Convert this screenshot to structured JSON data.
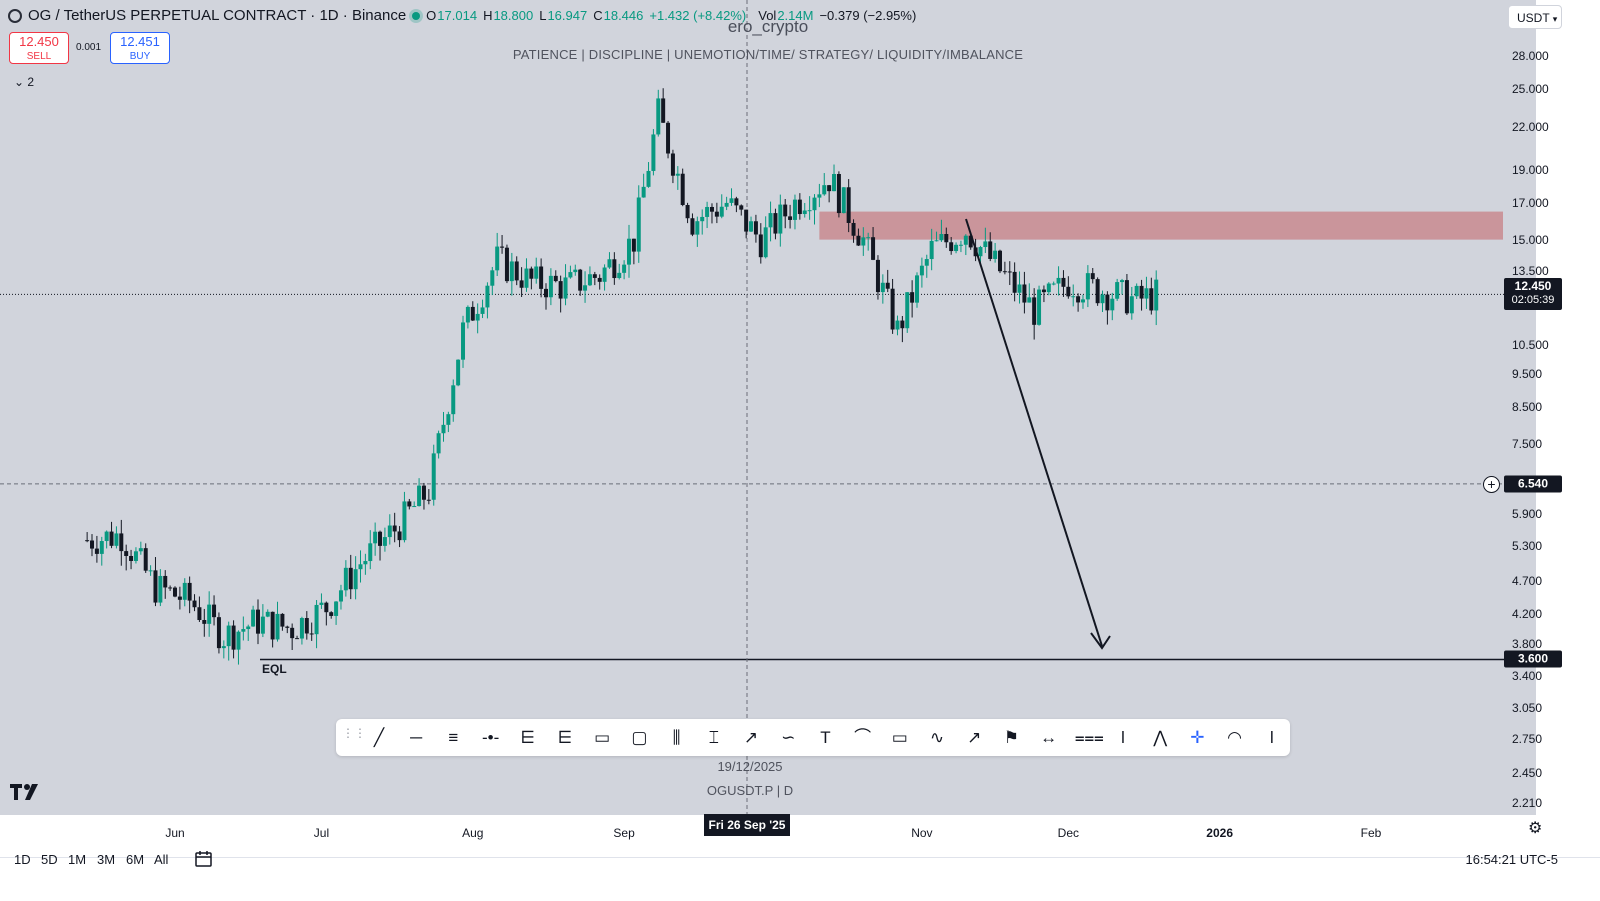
{
  "header": {
    "symbol": "OG / TetherUS PERPETUAL CONTRACT · 1D · Binance",
    "open_label": "O",
    "open": "17.014",
    "high_label": "H",
    "high": "18.800",
    "low_label": "L",
    "low": "16.947",
    "close_label": "C",
    "close": "18.446",
    "change": "+1.432 (+8.42%)",
    "vol_label": "Vol",
    "vol": "2.14M",
    "vol_change": "−0.379 (−2.95%)"
  },
  "trade": {
    "sell_price": "12.450",
    "sell_label": "SELL",
    "spread": "0.001",
    "buy_price": "12.451",
    "buy_label": "BUY"
  },
  "indicator_toggle": "2",
  "watermark": "ero_crypto",
  "tagline": "PATIENCE  |  DISCIPLINE  |  UNEMOTION/TIME/ STRATEGY/ LIQUIDITY/IMBALANCE",
  "currency": "USDT",
  "price_ticks": [
    "28.000",
    "25.000",
    "22.000",
    "19.000",
    "17.000",
    "15.000",
    "13.500",
    "10.500",
    "9.500",
    "8.500",
    "7.500",
    "5.900",
    "5.300",
    "4.700",
    "4.200",
    "3.800",
    "3.400",
    "3.050",
    "2.750",
    "2.450",
    "2.210"
  ],
  "current_price": "12.450",
  "countdown": "02:05:39",
  "alert_price": "6.540",
  "eql_price": "3.600",
  "eql_label": "EQL",
  "time_ticks": [
    "Jun",
    "Jul",
    "Aug",
    "Sep",
    "Nov",
    "Dec",
    "2026",
    "Feb"
  ],
  "crosshair_date": "Fri 26 Sep '25",
  "note_date": "19/12/2025",
  "note_symbol": "OGUSDT.P  |  D",
  "timeframes": [
    "1D",
    "5D",
    "1M",
    "3M",
    "6M",
    "All"
  ],
  "clock": "16:54:21 UTC-5",
  "colors": {
    "up": "#089981",
    "down": "#131722",
    "zone": "#c9898f",
    "background": "#d1d4dc"
  },
  "toolbar_icons": [
    "trend-line-icon",
    "horizontal-ray-icon",
    "parallel-channel-icon",
    "horizontal-line-icon",
    "fib-retracement-icon",
    "fib-extension-icon",
    "callout-icon",
    "rectangle-icon",
    "long-position-icon",
    "price-range-icon",
    "arrow-icon",
    "brush-icon",
    "text-icon",
    "curve-icon",
    "comment-icon",
    "path-icon",
    "arrow-marker-icon",
    "flag-icon",
    "date-range-icon",
    "pitchfork-icon",
    "bars-pattern-icon",
    "projection-icon",
    "crosshair-icon",
    "arc-icon",
    "vertical-line-icon"
  ],
  "chart_data": {
    "type": "candlestick",
    "scale": "log",
    "x": [
      "2025-05-14",
      "2025-05-21",
      "2025-05-28",
      "2025-06-04",
      "2025-06-11",
      "2025-06-18",
      "2025-06-25",
      "2025-07-02",
      "2025-07-09",
      "2025-07-16",
      "2025-07-23",
      "2025-07-30",
      "2025-08-06",
      "2025-08-13",
      "2025-08-20",
      "2025-08-27",
      "2025-09-03",
      "2025-09-08",
      "2025-09-15",
      "2025-09-22",
      "2025-09-29",
      "2025-10-06",
      "2025-10-13",
      "2025-10-20",
      "2025-10-27",
      "2025-11-03",
      "2025-11-10",
      "2025-11-17",
      "2025-11-24",
      "2025-12-01",
      "2025-12-08",
      "2025-12-15",
      "2025-12-19"
    ],
    "close": [
      5.4,
      5.5,
      4.6,
      4.4,
      3.9,
      4.1,
      4.0,
      4.3,
      5.0,
      5.6,
      6.4,
      11.0,
      14.0,
      13.0,
      12.8,
      13.3,
      15.0,
      23.0,
      16.0,
      17.0,
      15.0,
      17.0,
      18.5,
      15.0,
      11.0,
      14.5,
      15.5,
      13.5,
      11.8,
      13.0,
      12.6,
      12.2,
      12.45
    ],
    "ylim": [
      2.2,
      29.0
    ],
    "horizontal_lines": [
      {
        "price": 3.6,
        "label": "EQL"
      },
      {
        "price": 6.54,
        "style": "dashed"
      },
      {
        "price": 12.45,
        "style": "dotted"
      }
    ],
    "zones": [
      {
        "from_price": 15.0,
        "to_price": 16.5,
        "start": "2025-10-11"
      }
    ]
  }
}
